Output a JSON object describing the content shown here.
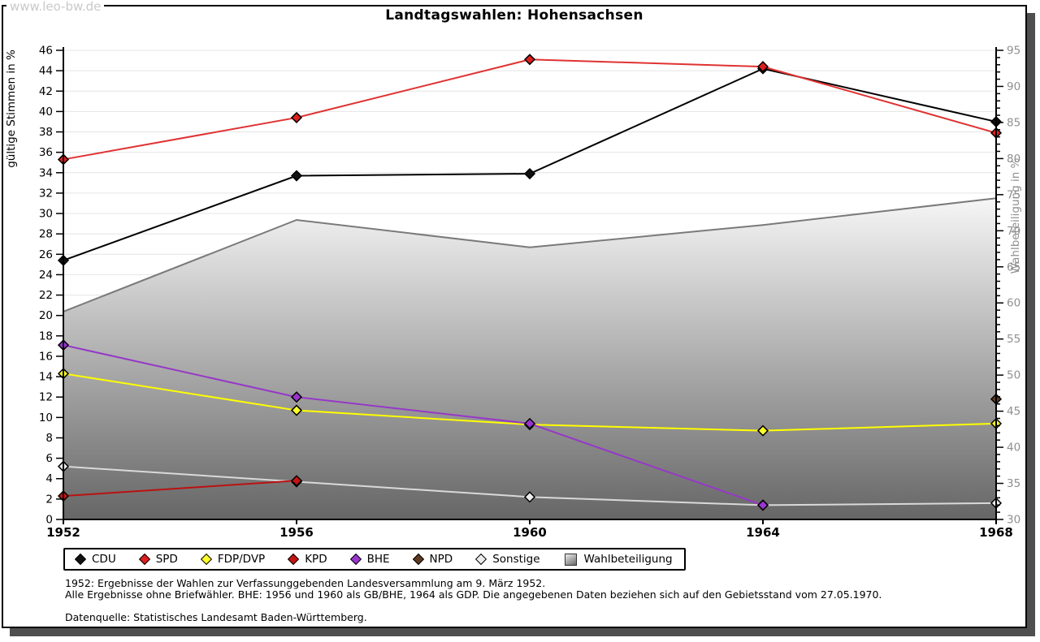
{
  "watermark": "www.leo-bw.de",
  "title": "Landtagswahlen: Hohensachsen",
  "chart_data": {
    "type": "line",
    "title": "Landtagswahlen: Hohensachsen",
    "x": [
      1952,
      1956,
      1960,
      1964,
      1968
    ],
    "xlabel": "",
    "ylabel_left": "gültige Stimmen in %",
    "ylabel_right": "Wahlbeteiligung in %",
    "ylim_left": [
      0,
      46
    ],
    "ytick_step_left": 2,
    "ylim_right": [
      30,
      95
    ],
    "ytick_major_right": 5,
    "ytick_minor_right": 1,
    "grid": true,
    "legend_position": "bottom",
    "series": [
      {
        "name": "CDU",
        "color": "#000000",
        "marker_fill": "#111111",
        "values": [
          25.4,
          33.7,
          33.9,
          44.2,
          39.0
        ]
      },
      {
        "name": "SPD",
        "color": "#e03232",
        "marker_fill": "#dd1f1f",
        "values": [
          35.3,
          39.4,
          45.1,
          44.4,
          37.9
        ]
      },
      {
        "name": "FDP/DVP",
        "color": "#ffff00",
        "marker_fill": "#ffff2a",
        "values": [
          14.3,
          10.7,
          9.3,
          8.7,
          9.4
        ]
      },
      {
        "name": "KPD",
        "color": "#bb1111",
        "marker_fill": "#c41414",
        "values": [
          2.3,
          3.8,
          null,
          null,
          null
        ]
      },
      {
        "name": "BHE",
        "color": "#9638c8",
        "marker_fill": "#9a35cf",
        "values": [
          17.1,
          12.0,
          9.4,
          1.4,
          null
        ]
      },
      {
        "name": "NPD",
        "color": "#5f3b22",
        "marker_fill": "#5f3b22",
        "values": [
          null,
          null,
          null,
          null,
          11.8
        ]
      },
      {
        "name": "Sonstige",
        "color": "#d9d9d9",
        "marker_fill": "#ececec",
        "values": [
          5.2,
          3.7,
          2.2,
          1.4,
          1.6
        ]
      }
    ],
    "area_series": {
      "name": "Wahlbeteiligung",
      "axis": "right",
      "values": [
        58.8,
        71.5,
        67.7,
        70.8,
        74.5
      ],
      "fill_top": "#f6f6f6",
      "fill_bottom": "#666666",
      "edge_color": "#7a7a7a"
    },
    "zorder": [
      "Sonstige",
      "FDP/DVP",
      "BHE",
      "KPD",
      "NPD",
      "CDU",
      "SPD"
    ],
    "colors": {
      "grid": "#e4e4e4",
      "axis": "#000000",
      "right_axis_text": "#8f8f8f",
      "left_axis_text": "#000000"
    }
  },
  "footnotes": {
    "lines": [
      "1952: Ergebnisse der Wahlen zur Verfassunggebenden Landesversammlung am 9. März 1952.",
      "Alle Ergebnisse ohne Briefwähler. BHE: 1956 und 1960 als GB/BHE, 1964 als GDP. Die angegebenen Daten beziehen sich auf den Gebietsstand vom 27.05.1970.",
      "",
      "Datenquelle: Statistisches Landesamt Baden-Württemberg."
    ]
  }
}
